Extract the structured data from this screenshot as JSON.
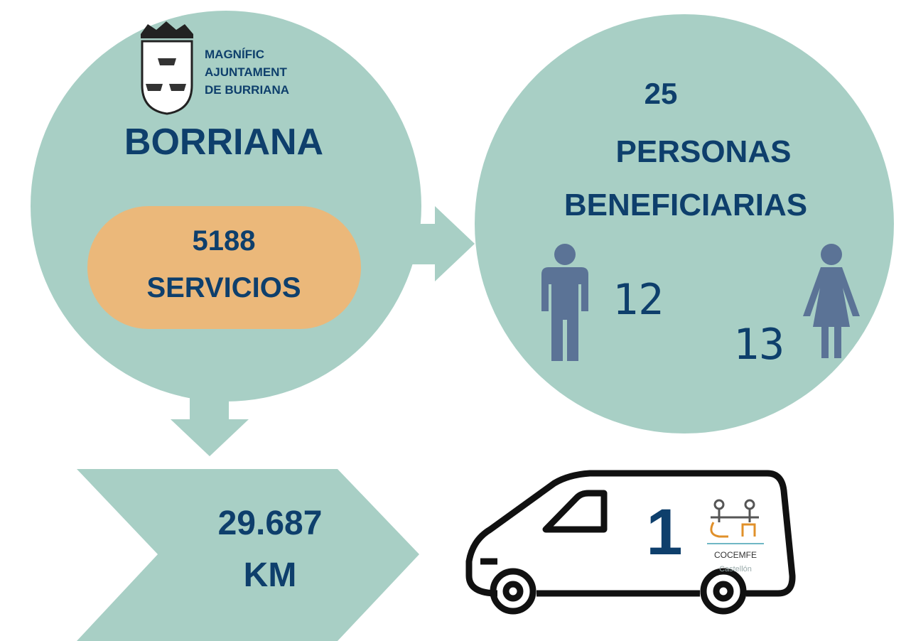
{
  "logo": {
    "lines": [
      "MAGNÍFIC",
      "AJUNTAMENT",
      "DE BURRIANA"
    ]
  },
  "city": "BORRIANA",
  "services": {
    "value": "5188",
    "label": "SERVICIOS"
  },
  "beneficiaries": {
    "total": "25",
    "label_lines": [
      "PERSONAS",
      "BENEFICIARIAS"
    ],
    "men": "12",
    "women": "13"
  },
  "distance": {
    "value": "29.687",
    "unit": "KM"
  },
  "vehicles": {
    "count": "1",
    "partner": "COCEMFE",
    "partner_sub": "Castellón"
  }
}
